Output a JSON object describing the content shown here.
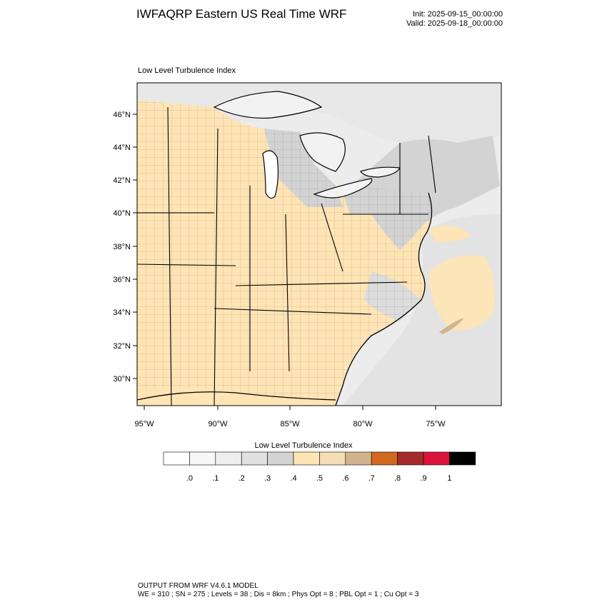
{
  "header": {
    "title": "IWFAQRP Eastern US Real Time WRF",
    "init": "Init: 2025-09-15_00:00:00",
    "valid": "Valid: 2025-09-18_00:00:00"
  },
  "panel": {
    "label": "Low Level Turbulence Index"
  },
  "axes": {
    "lat_labels": [
      "46°N",
      "44°N",
      "42°N",
      "40°N",
      "38°N",
      "36°N",
      "34°N",
      "32°N",
      "30°N"
    ],
    "lon_labels": [
      "95°W",
      "90°W",
      "85°W",
      "80°W",
      "75°W"
    ]
  },
  "colorbar": {
    "title": "Low Level Turbulence Index",
    "tick_labels": [
      ".0",
      ".1",
      ".2",
      ".3",
      ".4",
      ".5",
      ".6",
      ".7",
      ".8",
      ".9",
      "1"
    ],
    "colors": [
      "#ffffff",
      "#f7f7f7",
      "#eeeeee",
      "#e0e0e0",
      "#d3d3d3",
      "#ffe4b5",
      "#f5deb3",
      "#d2b48c",
      "#d2691e",
      "#a52a2a",
      "#dc143c",
      "#000000"
    ]
  },
  "map_colors": {
    "land_turb": "#ffe4b5",
    "land_light": "#d3d3d3",
    "water": "#f2f2f2",
    "lake_fill": "#ffffff",
    "tan": "#d2b48c"
  },
  "footer": {
    "line1": "OUTPUT FROM WRF V4.6.1 MODEL",
    "line2": "WE = 310 ; SN = 275 ; Levels = 38 ; Dis = 8km ; Phys Opt = 8 ; PBL Opt = 1 ; Cu Opt = 3"
  }
}
